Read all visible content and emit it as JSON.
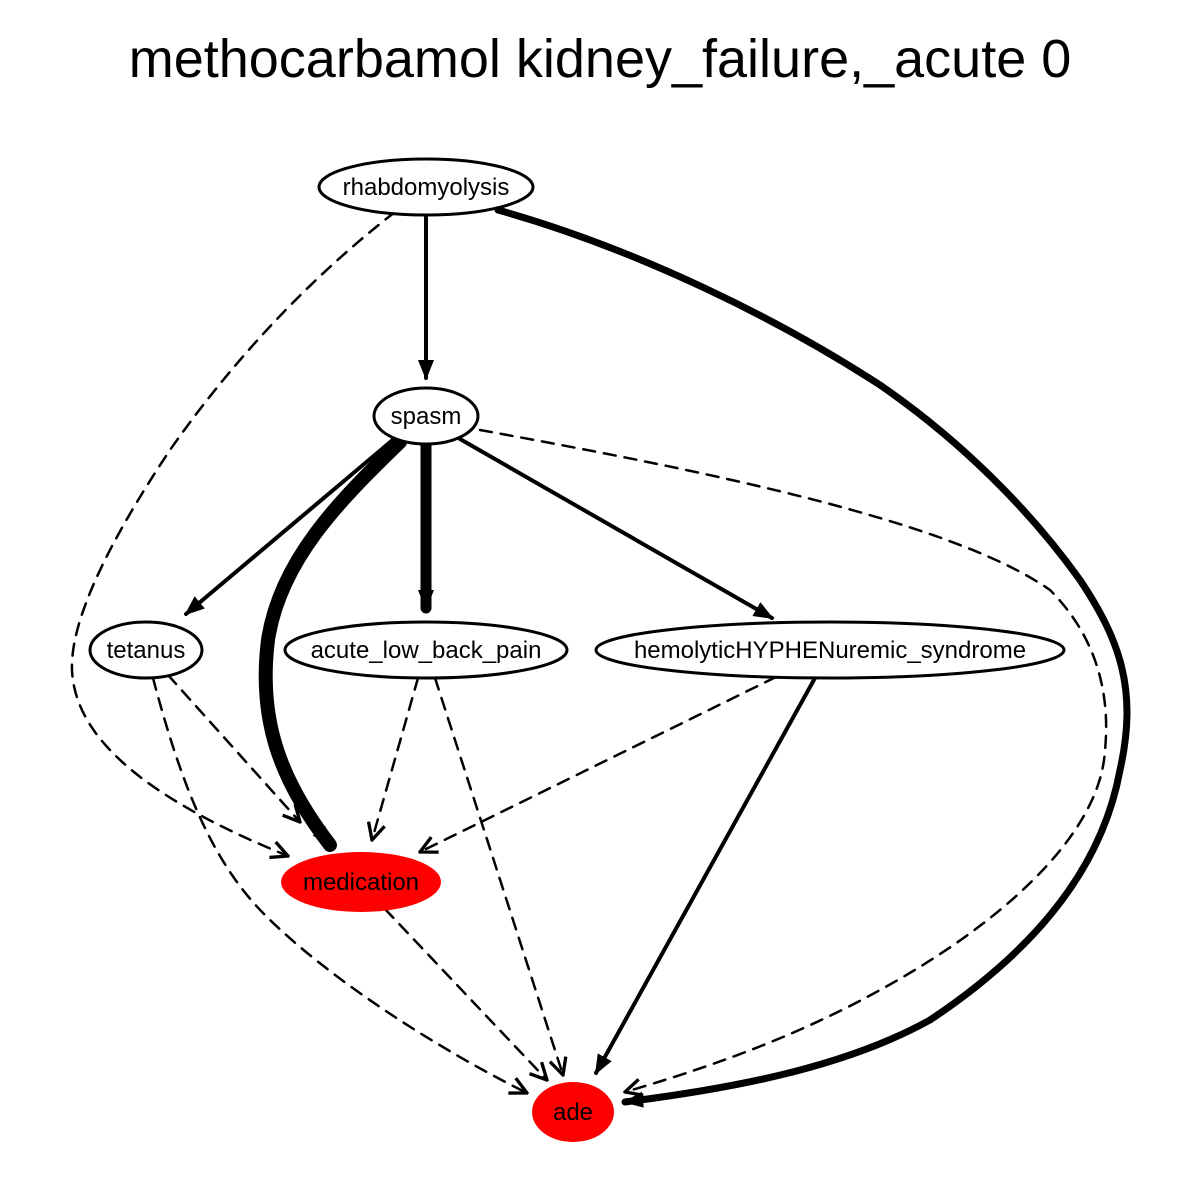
{
  "title": "methocarbamol kidney_failure,_acute 0",
  "colors": {
    "highlight": "#ff0000",
    "node_fill": "#ffffff",
    "stroke": "#000000"
  },
  "nodes": [
    {
      "id": "rhabdomyolysis",
      "label": "rhabdomyolysis",
      "highlight": false
    },
    {
      "id": "spasm",
      "label": "spasm",
      "highlight": false
    },
    {
      "id": "tetanus",
      "label": "tetanus",
      "highlight": false
    },
    {
      "id": "acute_low_back_pain",
      "label": "acute_low_back_pain",
      "highlight": false
    },
    {
      "id": "hemolytic",
      "label": "hemolyticHYPHENuremic_syndrome",
      "highlight": false
    },
    {
      "id": "medication",
      "label": "medication",
      "highlight": true
    },
    {
      "id": "ade",
      "label": "ade",
      "highlight": true
    }
  ],
  "edges": [
    {
      "from": "rhabdomyolysis",
      "to": "spasm",
      "style": "solid"
    },
    {
      "from": "rhabdomyolysis",
      "to": "ade",
      "style": "solid"
    },
    {
      "from": "rhabdomyolysis",
      "to": "medication",
      "style": "dashed"
    },
    {
      "from": "spasm",
      "to": "tetanus",
      "style": "solid"
    },
    {
      "from": "spasm",
      "to": "acute_low_back_pain",
      "style": "solid"
    },
    {
      "from": "spasm",
      "to": "hemolytic",
      "style": "solid"
    },
    {
      "from": "spasm",
      "to": "medication",
      "style": "solid"
    },
    {
      "from": "spasm",
      "to": "ade",
      "style": "dashed"
    },
    {
      "from": "tetanus",
      "to": "medication",
      "style": "dashed"
    },
    {
      "from": "tetanus",
      "to": "ade",
      "style": "dashed"
    },
    {
      "from": "acute_low_back_pain",
      "to": "medication",
      "style": "dashed"
    },
    {
      "from": "acute_low_back_pain",
      "to": "ade",
      "style": "dashed"
    },
    {
      "from": "hemolytic",
      "to": "medication",
      "style": "dashed"
    },
    {
      "from": "hemolytic",
      "to": "ade",
      "style": "solid"
    },
    {
      "from": "medication",
      "to": "ade",
      "style": "dashed"
    }
  ]
}
